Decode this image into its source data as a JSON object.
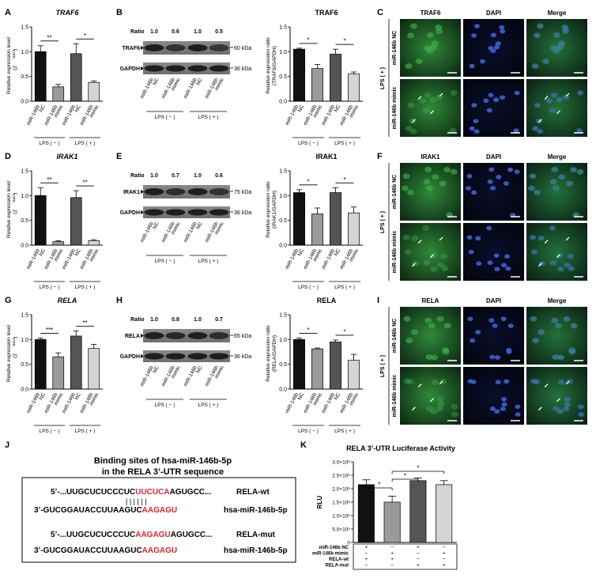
{
  "panel_letters": {
    "A": "A",
    "B": "B",
    "C": "C",
    "D": "D",
    "E": "E",
    "F": "F",
    "G": "G",
    "H": "H",
    "I": "I",
    "J": "J",
    "K": "K"
  },
  "qpcr_ylabel_1": "Relative expression level",
  "qpcr_ylabel_2": "(2",
  "qpcr_ylabel_sup": "-ΔΔCt",
  "qpcr_ylabel_3": ")",
  "xcat": {
    "nc_1": "miR-146b",
    "nc_2": "NC",
    "mimic_1": "miR-146b",
    "mimic_2": "mimic"
  },
  "lps_minus": "LPS ( − )",
  "lps_plus": "LPS ( + )",
  "ratio_label": "Ratio",
  "gapdh_label": "GAPDH",
  "gapdh_kda": "36 kDa",
  "wb_ratio_ylabel_1": "Relative expression ratio",
  "if_headers": {
    "c1": "DAPI",
    "c2": "Merge"
  },
  "if_side": {
    "nc": "miR-146b NC",
    "mimic": "miR-146b mimic",
    "lps": "LPS ( + )"
  },
  "rows": [
    {
      "gene": "TRAF6",
      "kda": "60 kDa",
      "wb_ylabel": "(TRAF6/GAPDH)",
      "ratios": [
        "1.0",
        "0.6",
        "1.0",
        "0.5"
      ],
      "sig_qpcr": [
        "**",
        "*"
      ],
      "sig_wb": [
        "*",
        "*"
      ]
    },
    {
      "gene": "IRAK1",
      "kda": "75 kDa",
      "wb_ylabel": "(IRAK1/GAPDH)",
      "ratios": [
        "1.0",
        "0.7",
        "1.0",
        "0.6"
      ],
      "sig_qpcr": [
        "**",
        "**"
      ],
      "sig_wb": [
        "*",
        "*"
      ]
    },
    {
      "gene": "RELA",
      "kda": "65 kDa",
      "wb_ylabel": "(RELA/GAPDH)",
      "ratios": [
        "1.0",
        "0.8",
        "1.0",
        "0.7"
      ],
      "sig_qpcr": [
        "***",
        "**"
      ],
      "sig_wb": [
        "*",
        "*"
      ]
    }
  ],
  "binding": {
    "title_1": "Binding sites of hsa-miR-146b-5p",
    "title_2": "in the RELA 3’-UTR sequence",
    "wt_pre": "5’-...UUGCUCUCCCUC",
    "wt_red": "UUCUCA",
    "wt_post": "AGUGCC...",
    "wt_label": "RELA-wt",
    "mir_pre": "3’-GUCGGAUACCUUAAGUC",
    "mir_red": "AAGAGU",
    "mir_label": "hsa-miR-146b-5p",
    "mut_pre": "5’-...UUGCUCUCCCUC",
    "mut_red": "AAGAGU",
    "mut_post": "AGUGCC...",
    "mut_label": "RELA-mut",
    "pairs": "| | | | | |"
  },
  "luciferase": {
    "title": "RELA 3’-UTR Luciferase Activity",
    "ylabel": "RLU",
    "row_labels": [
      "miR-146b NC",
      "miR-146b mimic",
      "RELA-wt",
      "RELA-mut"
    ],
    "row_signs": [
      [
        "+",
        "−",
        "+",
        "−"
      ],
      [
        "−",
        "+",
        "−",
        "+"
      ],
      [
        "+",
        "+",
        "−",
        "−"
      ],
      [
        "−",
        "−",
        "+",
        "+"
      ]
    ],
    "sig": [
      "*",
      "*",
      "*"
    ]
  },
  "chart_data": [
    {
      "type": "bar",
      "panel": "A",
      "title": "TRAF6",
      "categories": [
        "miR-146b NC",
        "miR-146b mimic",
        "miR-146b NC",
        "miR-146b mimic"
      ],
      "groups": [
        "LPS ( − )",
        "LPS ( − )",
        "LPS ( + )",
        "LPS ( + )"
      ],
      "values": [
        1.0,
        0.29,
        0.96,
        0.38
      ],
      "errors": [
        0.12,
        0.05,
        0.2,
        0.03
      ],
      "ylim": [
        0,
        1.5
      ],
      "yticks": [
        "0.0",
        "0.5",
        "1.0",
        "1.5"
      ],
      "ylabel": "Relative expression level (2-ΔΔCt)"
    },
    {
      "type": "bar",
      "panel": "B",
      "title": "TRAF6",
      "categories": [
        "miR-146b NC",
        "miR-146b mimic",
        "miR-146b NC",
        "miR-146b mimic"
      ],
      "groups": [
        "LPS ( − )",
        "LPS ( − )",
        "LPS ( + )",
        "LPS ( + )"
      ],
      "values": [
        1.05,
        0.66,
        0.95,
        0.55
      ],
      "errors": [
        0.02,
        0.08,
        0.1,
        0.04
      ],
      "ylim": [
        0,
        1.5
      ],
      "yticks": [
        "0.0",
        "0.5",
        "1.0",
        "1.5"
      ],
      "ylabel": "Relative expression ratio (TRAF6/GAPDH)"
    },
    {
      "type": "bar",
      "panel": "D",
      "title": "IRAK1",
      "categories": [
        "miR-146b NC",
        "miR-146b mimic",
        "miR-146b NC",
        "miR-146b mimic"
      ],
      "groups": [
        "LPS ( − )",
        "LPS ( − )",
        "LPS ( + )",
        "LPS ( + )"
      ],
      "values": [
        1.0,
        0.07,
        0.96,
        0.09
      ],
      "errors": [
        0.16,
        0.02,
        0.14,
        0.02
      ],
      "ylim": [
        0,
        1.5
      ],
      "yticks": [
        "0.0",
        "0.5",
        "1.0",
        "1.5"
      ],
      "ylabel": "Relative expression level (2-ΔΔCt)"
    },
    {
      "type": "bar",
      "panel": "E",
      "title": "IRAK1",
      "categories": [
        "miR-146b NC",
        "miR-146b mimic",
        "miR-146b NC",
        "miR-146b mimic"
      ],
      "groups": [
        "LPS ( − )",
        "LPS ( − )",
        "LPS ( + )",
        "LPS ( + )"
      ],
      "values": [
        1.06,
        0.63,
        1.06,
        0.65
      ],
      "errors": [
        0.06,
        0.12,
        0.1,
        0.12
      ],
      "ylim": [
        0,
        1.5
      ],
      "yticks": [
        "0.0",
        "0.5",
        "1.0",
        "1.5"
      ],
      "ylabel": "Relative expression ratio (IRAK1/GAPDH)"
    },
    {
      "type": "bar",
      "panel": "G",
      "title": "RELA",
      "categories": [
        "miR-146b NC",
        "miR-146b mimic",
        "miR-146b NC",
        "miR-146b mimic"
      ],
      "groups": [
        "LPS ( − )",
        "LPS ( − )",
        "LPS ( + )",
        "LPS ( + )"
      ],
      "values": [
        1.0,
        0.65,
        1.07,
        0.82
      ],
      "errors": [
        0.03,
        0.08,
        0.1,
        0.08
      ],
      "ylim": [
        0,
        1.5
      ],
      "yticks": [
        "0.0",
        "0.5",
        "1.0",
        "1.5"
      ],
      "ylabel": "Relative expression level (2-ΔΔCt)"
    },
    {
      "type": "bar",
      "panel": "H",
      "title": "RELA",
      "categories": [
        "miR-146b NC",
        "miR-146b mimic",
        "miR-146b NC",
        "miR-146b mimic"
      ],
      "groups": [
        "LPS ( − )",
        "LPS ( − )",
        "LPS ( + )",
        "LPS ( + )"
      ],
      "values": [
        1.0,
        0.81,
        0.95,
        0.58
      ],
      "errors": [
        0.03,
        0.02,
        0.04,
        0.12
      ],
      "ylim": [
        0,
        1.5
      ],
      "yticks": [
        "0.0",
        "0.5",
        "1.0",
        "1.5"
      ],
      "ylabel": "Relative expression ratio (RELA/GAPDH)"
    },
    {
      "type": "bar",
      "panel": "K",
      "title": "RELA 3’-UTR Luciferase Activity",
      "categories": [
        "NC + RELA-wt",
        "mimic + RELA-wt",
        "NC + RELA-mut",
        "mimic + RELA-mut"
      ],
      "values": [
        2150000,
        1500000,
        2300000,
        2150000
      ],
      "errors": [
        180000,
        220000,
        100000,
        150000
      ],
      "ylim": [
        0,
        3000000
      ],
      "yticks": [
        "0",
        "5.0×10⁵",
        "1.0×10⁶",
        "1.5×10⁶",
        "2.0×10⁶",
        "2.5×10⁶",
        "3.0×10⁶"
      ],
      "ylabel": "RLU"
    }
  ],
  "colors": {
    "bar_nc": "#111111",
    "bar_mimic": "#9a9a9a",
    "bar_lps_nc": "#555555",
    "bar_lps_mimic": "#d4d4d4",
    "seed_red": "#e3262b",
    "if_green": "#3fae4e",
    "if_blue": "#3a61d6"
  }
}
